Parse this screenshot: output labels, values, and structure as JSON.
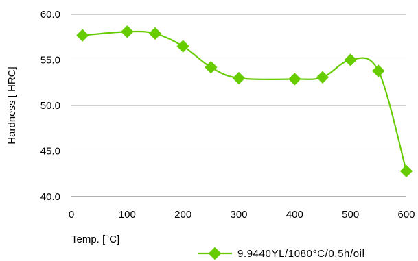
{
  "chart_data": {
    "type": "line",
    "xlabel": "Temp.  [°C]",
    "ylabel": "Hardness [ HRC]",
    "xlim": [
      0,
      600
    ],
    "ylim": [
      40.0,
      60.0
    ],
    "x_ticks": [
      "0",
      "100",
      "200",
      "300",
      "400",
      "500",
      "600"
    ],
    "y_ticks": [
      "40.0",
      "45.0",
      "50.0",
      "55.0",
      "60.0"
    ],
    "grid": "horizontal",
    "legend_position": "bottom-right",
    "smooth": true,
    "series": [
      {
        "name": "9.9440YL/1080°C/0,5h/oil",
        "color": "#66cc00",
        "marker": "diamond",
        "points": [
          {
            "x": 20,
            "y": 57.7
          },
          {
            "x": 100,
            "y": 58.1
          },
          {
            "x": 150,
            "y": 57.9
          },
          {
            "x": 200,
            "y": 56.5
          },
          {
            "x": 250,
            "y": 54.2
          },
          {
            "x": 300,
            "y": 53.0
          },
          {
            "x": 400,
            "y": 52.9
          },
          {
            "x": 450,
            "y": 53.1
          },
          {
            "x": 500,
            "y": 55.0
          },
          {
            "x": 550,
            "y": 53.8
          },
          {
            "x": 600,
            "y": 42.8
          }
        ]
      }
    ]
  }
}
